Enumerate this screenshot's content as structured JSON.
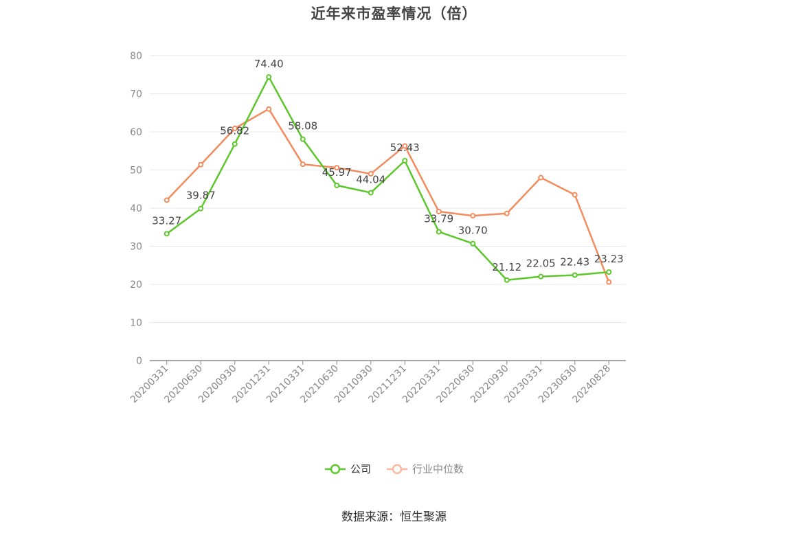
{
  "title": "近年来市盈率情况（倍）",
  "source": "数据来源：恒生聚源",
  "legend": {
    "company": "公司",
    "industry": "行业中位数"
  },
  "colors": {
    "company": "#5cc72b",
    "industry": "#f38b5c",
    "industry_legend": "#f8b9a0",
    "grid": "#e6e9f0",
    "axis": "#888888"
  },
  "chart_data": {
    "type": "line",
    "title": "近年来市盈率情况（倍）",
    "categories": [
      "20200331",
      "20200630",
      "20200930",
      "20201231",
      "20210331",
      "20210630",
      "20210930",
      "20211231",
      "20220331",
      "20220630",
      "20220930",
      "20230331",
      "20230630",
      "20240828"
    ],
    "ylim": [
      0,
      80
    ],
    "yticks": [
      0,
      10,
      20,
      30,
      40,
      50,
      60,
      70,
      80
    ],
    "grid": true,
    "legend_position": "bottom",
    "series": [
      {
        "name": "公司",
        "values": [
          33.27,
          39.87,
          56.82,
          74.4,
          58.08,
          45.97,
          44.04,
          52.43,
          33.79,
          30.7,
          21.12,
          22.05,
          22.43,
          23.23
        ],
        "labels": [
          "33.27",
          "39.87",
          "56.82",
          "74.40",
          "58.08",
          "45.97",
          "44.04",
          "52.43",
          "33.79",
          "30.70",
          "21.12",
          "22.05",
          "22.43",
          "23.23"
        ]
      },
      {
        "name": "行业中位数",
        "values": [
          42.1,
          51.4,
          60.9,
          66.0,
          51.5,
          50.6,
          49.0,
          56.3,
          39.1,
          38.0,
          38.6,
          48.0,
          43.5,
          20.6
        ]
      }
    ]
  }
}
